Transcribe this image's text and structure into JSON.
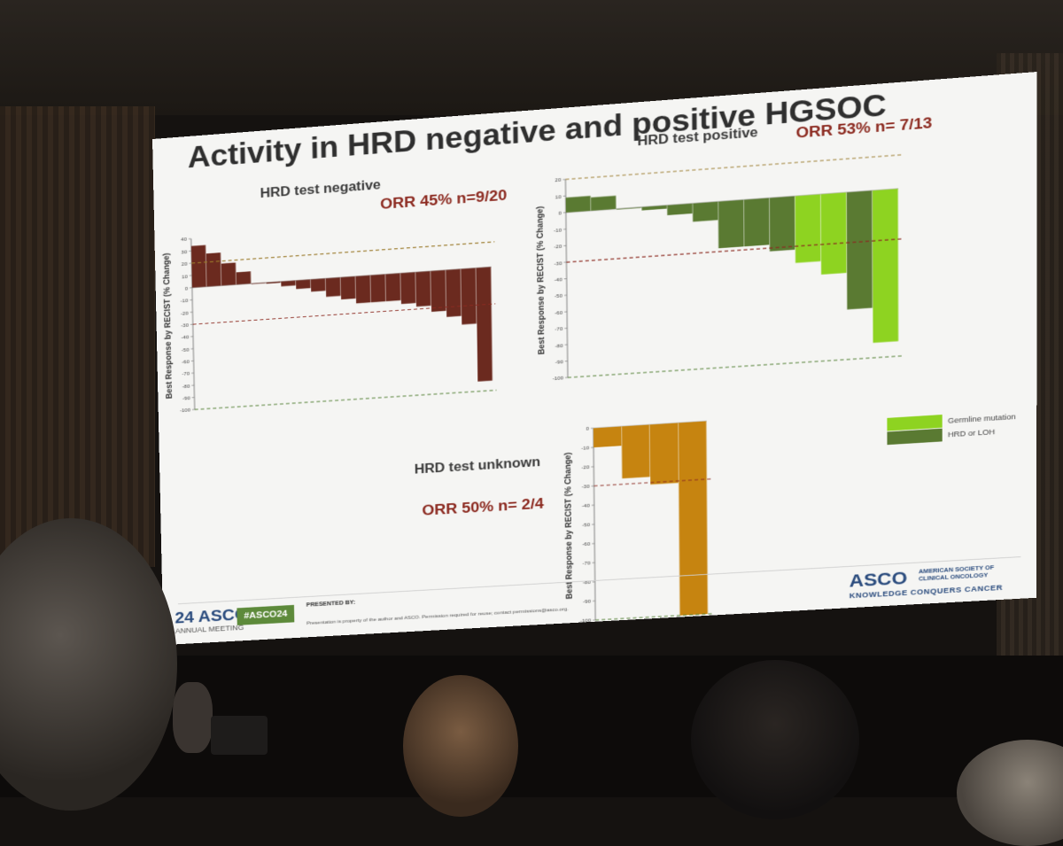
{
  "slide": {
    "title": "Activity in HRD negative and positive HGSOC",
    "footer": {
      "logo_text": "ASCO",
      "meeting_year": "24",
      "meeting_label": "ANNUAL MEETING",
      "hashtag": "#ASCO24",
      "presented_by": "PRESENTED BY:",
      "disclaimer": "Presentation is property of the author and ASCO. Permission required for reuse; contact permissions@asco.org.",
      "society_logo": "ASCO",
      "society_name": "AMERICAN SOCIETY OF CLINICAL ONCOLOGY",
      "tagline": "KNOWLEDGE CONQUERS CANCER"
    }
  },
  "panels": {
    "negative": {
      "label": "HRD test negative",
      "orr": "ORR 45% n=9/20"
    },
    "positive": {
      "label": "HRD test positive",
      "orr": "ORR 53% n= 7/13"
    },
    "unknown": {
      "label": "HRD test unknown",
      "orr": "ORR 50% n= 2/4"
    }
  },
  "legend": {
    "items": [
      {
        "label": "Germline mutation",
        "color": "#8ed321"
      },
      {
        "label": "HRD or LOH",
        "color": "#5a7a32"
      }
    ]
  },
  "chart_data": [
    {
      "type": "bar",
      "subtype": "waterfall",
      "panel": "negative",
      "ylabel": "Best Response by RECIST (% Change)",
      "ylim": [
        -100,
        40
      ],
      "yticks": [
        40,
        30,
        20,
        10,
        0,
        -10,
        -20,
        -30,
        -40,
        -50,
        -60,
        -70,
        -80,
        -90,
        -100
      ],
      "reference_lines": [
        20,
        -30,
        -100
      ],
      "color": "#6b2a1f",
      "values": [
        34,
        27,
        18,
        10,
        0,
        -1,
        -4,
        -7,
        -10,
        -15,
        -18,
        -22,
        -22,
        -22,
        -25,
        -28,
        -33,
        -38,
        -45,
        -92
      ]
    },
    {
      "type": "bar",
      "subtype": "waterfall",
      "panel": "positive",
      "ylabel": "Best Response by RECIST (% Change)",
      "ylim": [
        -100,
        20
      ],
      "yticks": [
        20,
        10,
        0,
        -10,
        -20,
        -30,
        -40,
        -50,
        -60,
        -70,
        -80,
        -90,
        -100
      ],
      "reference_lines": [
        20,
        -30,
        -100
      ],
      "colors": {
        "germline": "#8ed321",
        "hrd": "#5a7a32"
      },
      "values": [
        9,
        8,
        0,
        -2,
        -6,
        -11,
        -28,
        -28,
        -32,
        -40,
        -48,
        -70,
        -91
      ],
      "groups": [
        "hrd",
        "hrd",
        "hrd",
        "hrd",
        "hrd",
        "hrd",
        "hrd",
        "hrd",
        "hrd",
        "germline",
        "germline",
        "hrd",
        "germline"
      ]
    },
    {
      "type": "bar",
      "subtype": "waterfall",
      "panel": "unknown",
      "ylabel": "Best Response by RECIST (% Change)",
      "ylim": [
        -100,
        0
      ],
      "yticks": [
        0,
        -10,
        -20,
        -30,
        -40,
        -50,
        -60,
        -70,
        -80,
        -90,
        -100
      ],
      "reference_lines": [
        -30,
        -100
      ],
      "color": "#c68410",
      "values": [
        -10,
        -27,
        -31,
        -100
      ]
    }
  ]
}
